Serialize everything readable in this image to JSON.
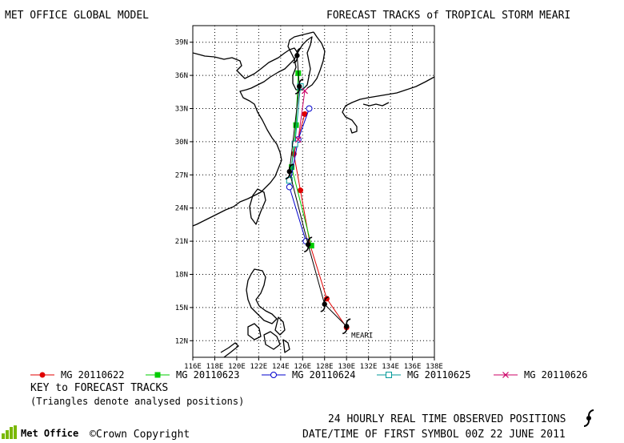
{
  "header": {
    "left": "MET OFFICE GLOBAL MODEL",
    "right": "FORECAST TRACKS of TROPICAL STORM MEARI"
  },
  "map": {
    "lon_range": [
      116,
      138
    ],
    "lat_range": [
      10.5,
      40.5
    ],
    "lat_ticks": [
      "12N",
      "15N",
      "18N",
      "21N",
      "24N",
      "27N",
      "30N",
      "33N",
      "36N",
      "39N"
    ],
    "lon_ticks": [
      "116E",
      "118E",
      "120E",
      "122E",
      "124E",
      "126E",
      "128E",
      "130E",
      "132E",
      "134E",
      "136E",
      "138E"
    ],
    "storm_label": "MEARI"
  },
  "chart_data": {
    "type": "line",
    "x_units": "degrees east longitude",
    "y_units": "degrees north latitude",
    "series": [
      {
        "name": "MG 20110622",
        "color": "#e00000",
        "marker": "circle-filled",
        "points": [
          [
            130.0,
            13.2
          ],
          [
            128.2,
            15.8
          ],
          [
            126.7,
            20.6
          ],
          [
            125.8,
            25.6
          ],
          [
            125.2,
            28.9
          ],
          [
            126.2,
            32.5
          ]
        ]
      },
      {
        "name": "MG 20110623",
        "color": "#00cc00",
        "marker": "square-filled",
        "points": [
          [
            126.8,
            20.6
          ],
          [
            125.0,
            27.7
          ],
          [
            125.4,
            31.5
          ],
          [
            125.6,
            36.2
          ]
        ]
      },
      {
        "name": "MG 20110624",
        "color": "#0000cc",
        "marker": "circle-open",
        "points": [
          [
            126.3,
            21.0
          ],
          [
            124.8,
            25.9
          ],
          [
            125.6,
            30.2
          ],
          [
            126.6,
            33.0
          ]
        ]
      },
      {
        "name": "MG 20110625",
        "color": "#009999",
        "marker": "square-open",
        "points": [
          [
            124.8,
            26.5
          ],
          [
            125.3,
            29.8
          ],
          [
            125.8,
            35.0
          ]
        ]
      },
      {
        "name": "MG 20110626",
        "color": "#cc0066",
        "marker": "cross",
        "points": [
          [
            125.6,
            30.2
          ],
          [
            126.2,
            34.6
          ]
        ]
      }
    ],
    "observed": {
      "name": "24 HOURLY REAL TIME OBSERVED POSITIONS",
      "points": [
        [
          130.0,
          13.3
        ],
        [
          128.0,
          15.3
        ],
        [
          126.5,
          20.7
        ],
        [
          124.8,
          27.3
        ],
        [
          125.7,
          35.0
        ],
        [
          125.5,
          37.8
        ]
      ]
    }
  },
  "legend": {
    "entries": [
      {
        "label": "MG 20110622",
        "color": "#e00000",
        "marker": "circle-filled"
      },
      {
        "label": "MG 20110623",
        "color": "#00cc00",
        "marker": "square-filled"
      },
      {
        "label": "MG 20110624",
        "color": "#0000cc",
        "marker": "circle-open"
      },
      {
        "label": "MG 20110625",
        "color": "#009999",
        "marker": "square-open"
      },
      {
        "label": "MG 20110626",
        "color": "#cc0066",
        "marker": "cross"
      }
    ]
  },
  "key": {
    "title": "KEY to FORECAST TRACKS",
    "note": "(Triangles denote analysed positions)"
  },
  "footer": {
    "logo_text": "Met Office",
    "copyright": "©Crown Copyright",
    "observed": "24 HOURLY REAL TIME OBSERVED POSITIONS",
    "datetime": "DATE/TIME OF FIRST SYMBOL 00Z 22 JUNE 2011"
  }
}
